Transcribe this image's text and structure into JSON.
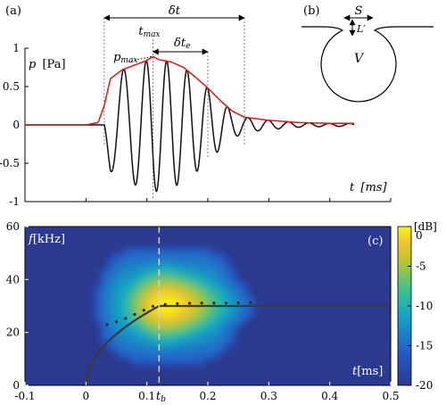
{
  "panels": {
    "a": {
      "label": "(a)"
    },
    "b": {
      "label": "(b)"
    },
    "c": {
      "label": "(c)"
    }
  },
  "annotations": {
    "delta_t": "δt",
    "t_max": "t",
    "t_max_sub": "max",
    "p_max": "p",
    "p_max_sub": "max",
    "delta_te": "δt",
    "delta_te_sub": "e"
  },
  "diagram": {
    "S": "S",
    "L": "L′",
    "V": "V"
  },
  "colors": {
    "envelope": "#e0151b",
    "signal": "#111111",
    "axis": "#000000",
    "background": "#2b3a8f",
    "fit": "#3a3a3a",
    "guide": "#c8c8c8"
  },
  "chart_data": [
    {
      "type": "line",
      "panel": "(a)",
      "ylabel_var": "p",
      "ylabel_unit": "[Pa]",
      "xlabel_var": "t",
      "xlabel_unit": "[ms]",
      "ylim": [
        -1,
        1
      ],
      "xlim": [
        -0.1,
        0.5
      ],
      "yticks": [
        "1",
        "0.5",
        "0",
        "-0.5",
        "-1"
      ],
      "yticks_values": [
        1,
        0.5,
        0,
        -0.5,
        -1
      ],
      "series": [
        {
          "role": "envelope",
          "x": [
            -0.1,
            0.0,
            0.02,
            0.03,
            0.04,
            0.06,
            0.08,
            0.1,
            0.11,
            0.12,
            0.14,
            0.16,
            0.18,
            0.2,
            0.22,
            0.24,
            0.26,
            0.3,
            0.35,
            0.4,
            0.44
          ],
          "y": [
            0.0,
            0.0,
            0.03,
            0.25,
            0.6,
            0.72,
            0.78,
            0.84,
            0.89,
            0.85,
            0.82,
            0.75,
            0.62,
            0.48,
            0.32,
            0.18,
            0.1,
            0.06,
            0.03,
            0.02,
            0.02
          ]
        },
        {
          "role": "signal",
          "f0_khz": 22,
          "f1_khz": 30,
          "t_on": 0.03,
          "t_b": 0.11
        }
      ],
      "markers": {
        "t_on": 0.03,
        "t_max": 0.11,
        "t_e": 0.2,
        "t_end": 0.26
      }
    },
    {
      "type": "heatmap",
      "panel": "(c)",
      "ylabel_var": "f",
      "ylabel_unit": "[kHz]",
      "xlabel_var": "t",
      "xlabel_unit": "[ms]",
      "xlim": [
        -0.1,
        0.5
      ],
      "ylim": [
        0,
        60
      ],
      "xticks": [
        "-0.1",
        "0",
        "0.1",
        "0.2",
        "0.3",
        "0.4",
        "0.5"
      ],
      "xticks_values": [
        -0.1,
        0,
        0.1,
        0.2,
        0.3,
        0.4,
        0.5
      ],
      "tb_label": "t",
      "tb_sub": "b",
      "tb_value": 0.12,
      "yticks": [
        "0",
        "20",
        "40",
        "60"
      ],
      "yticks_values": [
        0,
        20,
        40,
        60
      ],
      "colorbar": {
        "unit": "[dB]",
        "ticks": [
          "0",
          "-5",
          "-10",
          "-15",
          "-20"
        ],
        "values": [
          0,
          -5,
          -10,
          -15,
          -20
        ],
        "range": [
          -20,
          0
        ]
      },
      "fit_line": {
        "t_start": 0.0,
        "t_b": 0.12,
        "f_plateau": 30,
        "t_end": 0.5
      },
      "dotted_points": {
        "x": [
          0.035,
          0.05,
          0.065,
          0.08,
          0.095,
          0.11,
          0.13,
          0.15,
          0.17,
          0.19,
          0.21,
          0.23,
          0.25,
          0.27
        ],
        "y": [
          23,
          24,
          25.3,
          26.8,
          28.4,
          29.9,
          30.6,
          30.9,
          31,
          31.1,
          31.1,
          31.1,
          31.2,
          31.3
        ]
      }
    }
  ]
}
